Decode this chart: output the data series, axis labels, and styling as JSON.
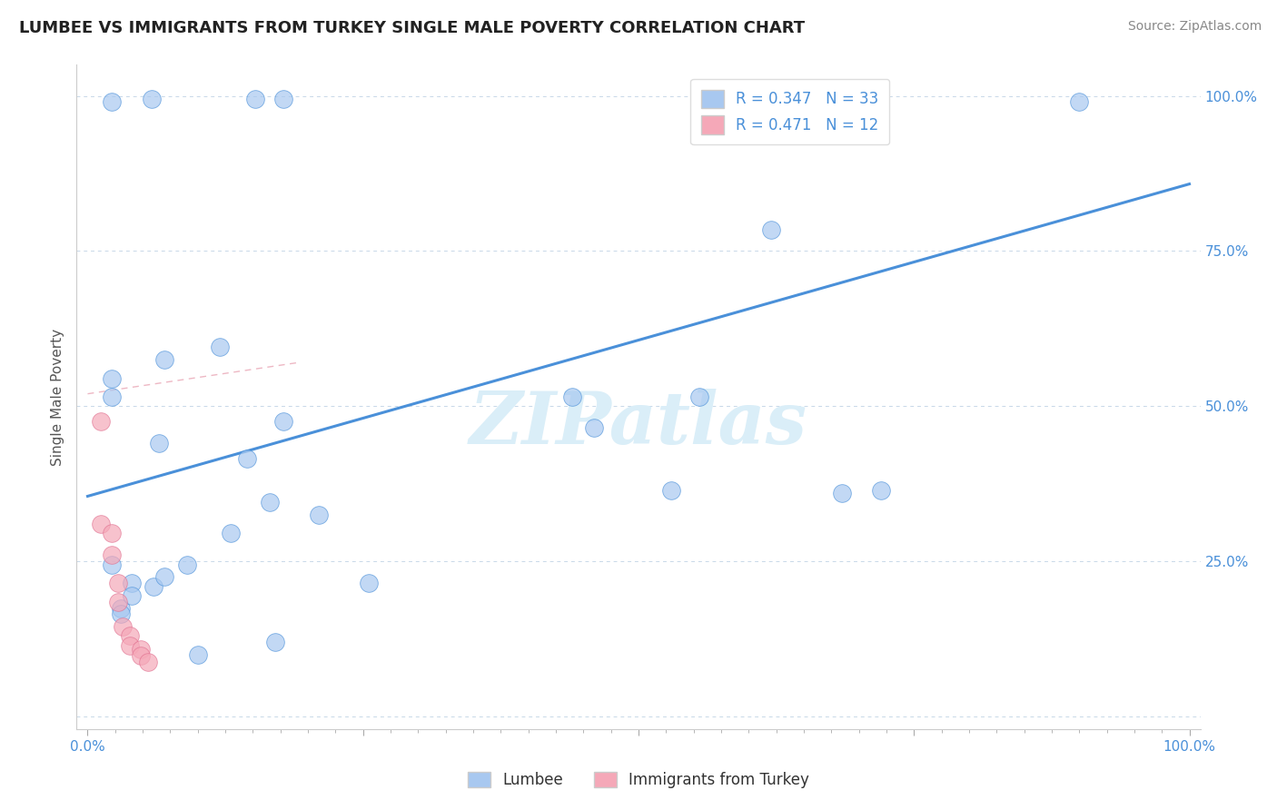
{
  "title": "LUMBEE VS IMMIGRANTS FROM TURKEY SINGLE MALE POVERTY CORRELATION CHART",
  "source": "Source: ZipAtlas.com",
  "ylabel": "Single Male Poverty",
  "legend_label1": "Lumbee",
  "legend_label2": "Immigrants from Turkey",
  "R1": 0.347,
  "N1": 33,
  "R2": 0.471,
  "N2": 12,
  "xlim": [
    -0.01,
    1.01
  ],
  "ylim": [
    -0.02,
    1.05
  ],
  "color_lumbee": "#a8c8f0",
  "color_turkey": "#f5a8b8",
  "color_line1": "#4a90d9",
  "color_line2": "#e07090",
  "watermark": "ZIPatlas",
  "watermark_color": "#daeef8",
  "background_color": "#ffffff",
  "grid_color": "#c8d8e8",
  "lumbee_x": [
    0.022,
    0.058,
    0.152,
    0.178,
    0.022,
    0.022,
    0.07,
    0.12,
    0.178,
    0.065,
    0.145,
    0.165,
    0.21,
    0.022,
    0.04,
    0.03,
    0.03,
    0.04,
    0.06,
    0.07,
    0.09,
    0.13,
    0.255,
    0.44,
    0.46,
    0.53,
    0.555,
    0.62,
    0.685,
    0.72,
    0.9,
    0.17,
    0.1
  ],
  "lumbee_y": [
    0.99,
    0.995,
    0.995,
    0.995,
    0.545,
    0.515,
    0.575,
    0.595,
    0.475,
    0.44,
    0.415,
    0.345,
    0.325,
    0.245,
    0.215,
    0.175,
    0.165,
    0.195,
    0.21,
    0.225,
    0.245,
    0.295,
    0.215,
    0.515,
    0.465,
    0.365,
    0.515,
    0.785,
    0.36,
    0.365,
    0.99,
    0.12,
    0.1
  ],
  "turkey_x": [
    0.012,
    0.012,
    0.022,
    0.022,
    0.028,
    0.028,
    0.032,
    0.038,
    0.038,
    0.048,
    0.048,
    0.055
  ],
  "turkey_y": [
    0.475,
    0.31,
    0.295,
    0.26,
    0.215,
    0.185,
    0.145,
    0.13,
    0.115,
    0.108,
    0.098,
    0.088
  ],
  "line1_x0": 0.0,
  "line1_y0": 0.355,
  "line1_x1": 1.0,
  "line1_y1": 0.858,
  "line2_x0": 0.0,
  "line2_y0": 0.52,
  "line2_x1": 0.19,
  "line2_y1": 0.57,
  "right_yticks": [
    0.25,
    0.5,
    0.75,
    1.0
  ],
  "right_ytick_labels": [
    "25.0%",
    "50.0%",
    "75.0%",
    "100.0%"
  ]
}
